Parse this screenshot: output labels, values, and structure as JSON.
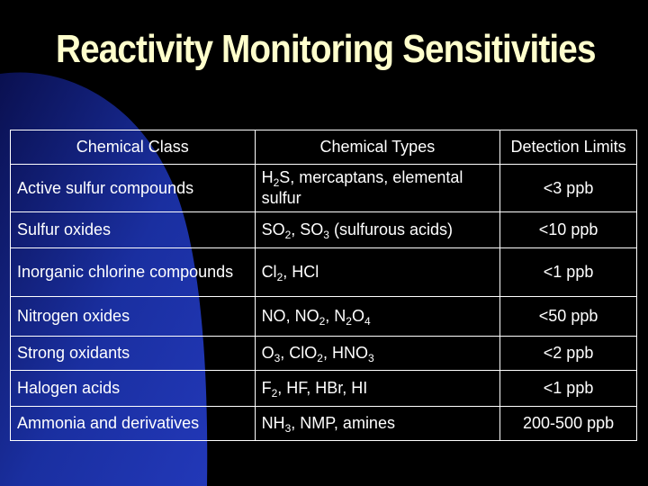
{
  "slide": {
    "title": "Reactivity Monitoring Sensitivities",
    "colors": {
      "background": "#000000",
      "accent_shape": "#1a2fa0",
      "title": "#ffffcc",
      "text": "#ffffff"
    }
  },
  "table": {
    "headers": [
      "Chemical Class",
      "Chemical Types",
      "Detection Limits"
    ],
    "rows": [
      {
        "class": "Active sulfur compounds",
        "types": [
          {
            "t": "H"
          },
          {
            "sub": "2"
          },
          {
            "t": "S, mercaptans, elemental sulfur"
          }
        ],
        "limit": "<3 ppb"
      },
      {
        "class": "Sulfur oxides",
        "types": [
          {
            "t": "SO"
          },
          {
            "sub": "2"
          },
          {
            "t": ", SO"
          },
          {
            "sub": "3"
          },
          {
            "t": " (sulfurous acids)"
          }
        ],
        "limit": "<10 ppb"
      },
      {
        "class": "Inorganic chlorine compounds",
        "types": [
          {
            "t": "Cl"
          },
          {
            "sub": "2"
          },
          {
            "t": ", HCl"
          }
        ],
        "limit": "<1 ppb"
      },
      {
        "class": "Nitrogen oxides",
        "types": [
          {
            "t": "NO, NO"
          },
          {
            "sub": "2"
          },
          {
            "t": ", N"
          },
          {
            "sub": "2"
          },
          {
            "t": "O"
          },
          {
            "sub": "4"
          }
        ],
        "limit": "<50 ppb"
      },
      {
        "class": "Strong oxidants",
        "types": [
          {
            "t": "O"
          },
          {
            "sub": "3"
          },
          {
            "t": ", ClO"
          },
          {
            "sub": "2"
          },
          {
            "t": ", HNO"
          },
          {
            "sub": "3"
          }
        ],
        "limit": "<2 ppb"
      },
      {
        "class": "Halogen acids",
        "types": [
          {
            "t": "F"
          },
          {
            "sub": "2"
          },
          {
            "t": ", HF, HBr, HI"
          }
        ],
        "limit": "<1 ppb"
      },
      {
        "class": "Ammonia and derivatives",
        "types": [
          {
            "t": "NH"
          },
          {
            "sub": "3"
          },
          {
            "t": ", NMP, amines"
          }
        ],
        "limit": "200-500 ppb"
      }
    ]
  }
}
